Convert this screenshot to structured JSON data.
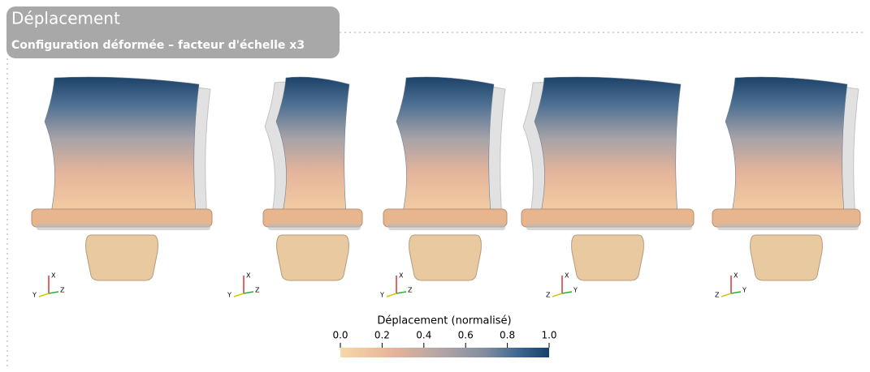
{
  "header": {
    "title": "Déplacement",
    "subtitle": "Configuration déformée – facteur d'échelle x3"
  },
  "views": [
    {
      "axes": [
        "X",
        "Y",
        "Z"
      ]
    },
    {
      "axes": [
        "X",
        "Y",
        "Z"
      ]
    },
    {
      "axes": [
        "X",
        "Y",
        "Z"
      ]
    },
    {
      "axes": [
        "X",
        "Z",
        "Y"
      ]
    },
    {
      "axes": [
        "X",
        "Z",
        "Y"
      ]
    }
  ],
  "colorbar": {
    "title": "Déplacement (normalisé)",
    "range": [
      0,
      1
    ],
    "ticks": [
      {
        "value": 0,
        "label": "0.0"
      },
      {
        "value": 0.2,
        "label": "0.2"
      },
      {
        "value": 0.4,
        "label": "0.4"
      },
      {
        "value": 0.6,
        "label": "0.6"
      },
      {
        "value": 0.8,
        "label": "0.8"
      },
      {
        "value": 1,
        "label": "1.0"
      }
    ]
  }
}
